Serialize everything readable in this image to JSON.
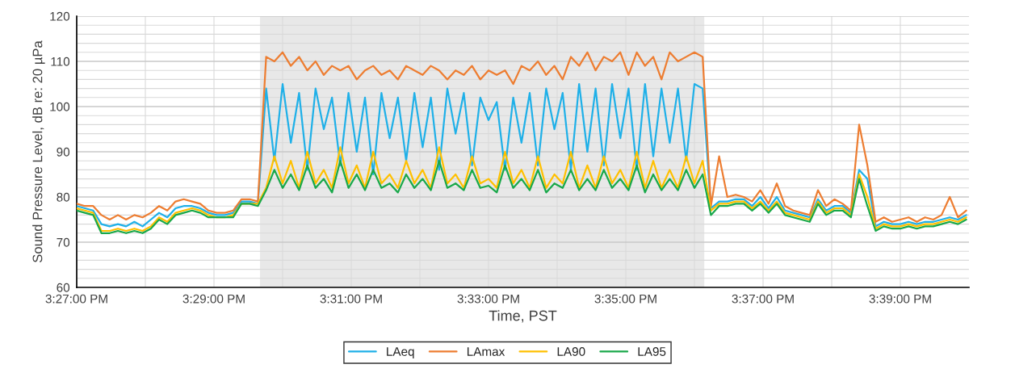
{
  "chart_data": {
    "type": "line",
    "xlabel": "Time, PST",
    "ylabel": "Sound Pressure Level, dB re: 20 µPa",
    "x": [
      15.45,
      15.452,
      15.454,
      15.456,
      15.458,
      15.46,
      15.462,
      15.464,
      15.466,
      15.468,
      15.47,
      15.472,
      15.474,
      15.476,
      15.478,
      15.48,
      15.482,
      15.484,
      15.486,
      15.488,
      15.49,
      15.492,
      15.494,
      15.496,
      15.498,
      15.5,
      15.502,
      15.504,
      15.506,
      15.508,
      15.51,
      15.512,
      15.514,
      15.516,
      15.518,
      15.52,
      15.522,
      15.524,
      15.526,
      15.528,
      15.53,
      15.532,
      15.534,
      15.536,
      15.538,
      15.54,
      15.542,
      15.544,
      15.546,
      15.548,
      15.55,
      15.552,
      15.554,
      15.556,
      15.558,
      15.56,
      15.562,
      15.564,
      15.566,
      15.568,
      15.57,
      15.572,
      15.574,
      15.576,
      15.578,
      15.58,
      15.582,
      15.584,
      15.586,
      15.588,
      15.59,
      15.592,
      15.594,
      15.596,
      15.598,
      15.6,
      15.602,
      15.604,
      15.606,
      15.608,
      15.61,
      15.612,
      15.614,
      15.616,
      15.618,
      15.62,
      15.622,
      15.624,
      15.626,
      15.628,
      15.63,
      15.632,
      15.634,
      15.636,
      15.638,
      15.64,
      15.642,
      15.644,
      15.646,
      15.648,
      15.65,
      15.652,
      15.654,
      15.656,
      15.658,
      15.66,
      15.662,
      15.664,
      15.666
    ],
    "series": [
      {
        "name": "LAeq",
        "color": "#1fb0e8",
        "values": [
          78,
          77.5,
          77,
          74,
          73.5,
          74,
          73.5,
          74.5,
          73.5,
          75,
          76.5,
          75.5,
          77.5,
          78,
          78,
          77.5,
          76.5,
          76,
          76,
          76.5,
          79,
          79,
          78.5,
          104,
          88,
          105,
          92,
          103,
          86,
          104,
          95,
          102,
          87,
          103,
          90,
          102,
          85,
          103,
          93,
          102,
          88,
          103,
          91,
          102,
          86,
          104,
          94,
          103,
          87,
          102,
          97,
          101,
          86,
          102,
          92,
          103,
          87,
          104,
          95,
          103,
          86,
          105,
          90,
          104,
          87,
          105,
          93,
          104,
          86,
          105,
          89,
          104,
          92,
          104,
          88,
          105,
          104,
          77.5,
          79,
          79,
          79.5,
          79.5,
          78,
          80,
          77.5,
          80,
          77,
          76.5,
          76,
          75.5,
          79.5,
          77,
          78,
          78,
          76.5,
          86,
          84,
          73.5,
          74.5,
          74,
          74,
          74.5,
          74,
          74.5,
          74.5,
          75,
          75.5,
          75,
          76
        ]
      },
      {
        "name": "LAmax",
        "color": "#ed7d31",
        "values": [
          78.5,
          78,
          78,
          76,
          75,
          76,
          75,
          76,
          75.5,
          76.5,
          78,
          77,
          79,
          79.5,
          79,
          78.5,
          77,
          76.5,
          76.5,
          77,
          79.5,
          79.5,
          79,
          111,
          110,
          112,
          109,
          111,
          108,
          110,
          107,
          109,
          108,
          109,
          106,
          108,
          109,
          107,
          108,
          106,
          109,
          108,
          107,
          109,
          108,
          106,
          108,
          107,
          109,
          106,
          108,
          107,
          108,
          105,
          109,
          108,
          110,
          107,
          109,
          106,
          111,
          109,
          112,
          108,
          111,
          110,
          112,
          107,
          112,
          109,
          111,
          106,
          112,
          110,
          111,
          112,
          111,
          78,
          89,
          80,
          80.5,
          80,
          79,
          81.5,
          78.5,
          83,
          78,
          77,
          76.5,
          76,
          81.5,
          78,
          79.5,
          78.5,
          77,
          96,
          87,
          74.5,
          75.5,
          74.5,
          75,
          75.5,
          74.5,
          75.5,
          75,
          76,
          80,
          75.5,
          77
        ]
      },
      {
        "name": "LA90",
        "color": "#ffc000",
        "values": [
          77.5,
          77,
          76.5,
          72.5,
          72.5,
          73,
          72.5,
          73,
          72.5,
          73.5,
          75.5,
          74.5,
          76.5,
          77,
          77.5,
          77,
          76,
          75.5,
          75.5,
          76,
          78.5,
          78.5,
          78.5,
          82,
          89,
          83,
          88,
          82,
          90,
          83,
          86,
          82,
          91,
          83,
          87,
          82,
          90,
          83,
          85,
          82,
          88,
          83,
          86,
          82,
          91,
          83,
          85,
          82,
          89,
          83,
          84,
          82,
          90,
          83,
          86,
          82,
          89,
          82,
          85,
          83,
          90,
          82,
          87,
          82,
          89,
          83,
          86,
          82,
          90,
          82,
          88,
          82,
          86,
          82,
          89,
          83,
          88,
          77,
          78.5,
          78.5,
          79,
          79,
          77.5,
          79,
          77,
          79,
          76.5,
          76,
          75.5,
          75,
          79,
          76.5,
          77.5,
          77.5,
          76,
          85,
          80,
          73,
          74,
          73.5,
          73.5,
          74,
          73.5,
          74,
          74,
          74.5,
          75,
          74.5,
          75.5
        ]
      },
      {
        "name": "LA95",
        "color": "#19a84a",
        "values": [
          77,
          76.5,
          76,
          72,
          72,
          72.5,
          72,
          72.5,
          72,
          73,
          75,
          74,
          76,
          76.5,
          77,
          76.5,
          75.5,
          75.5,
          75.5,
          75.5,
          78.5,
          78.5,
          78,
          81.5,
          86,
          82,
          85,
          81.5,
          87,
          82,
          84,
          81,
          88,
          82,
          85,
          81.5,
          86,
          82,
          83,
          81,
          85,
          82,
          84,
          81.5,
          88,
          82,
          83,
          81.5,
          86,
          82,
          82.5,
          81,
          87,
          82,
          84,
          81.5,
          86,
          81,
          83,
          82,
          86,
          81.5,
          84,
          81.5,
          86,
          82,
          84,
          81.5,
          87,
          81,
          85,
          81.5,
          84,
          81.5,
          86,
          82,
          85,
          76,
          78,
          78,
          78.5,
          78.5,
          77,
          78.5,
          76.5,
          78.5,
          76,
          75.5,
          75,
          74.5,
          78.5,
          76,
          77,
          77,
          75.5,
          84,
          78,
          72.5,
          73.5,
          73,
          73,
          73.5,
          73,
          73.5,
          73.5,
          74,
          74.5,
          74,
          75
        ]
      }
    ],
    "xlim": [
      15.45,
      15.666667
    ],
    "xticks": [
      {
        "value": 15.45,
        "label": "3:27:00 PM"
      },
      {
        "value": 15.466667,
        "label": null
      },
      {
        "value": 15.483333,
        "label": "3:29:00 PM"
      },
      {
        "value": 15.5,
        "label": null
      },
      {
        "value": 15.516667,
        "label": "3:31:00 PM"
      },
      {
        "value": 15.533333,
        "label": null
      },
      {
        "value": 15.55,
        "label": "3:33:00 PM"
      },
      {
        "value": 15.566667,
        "label": null
      },
      {
        "value": 15.583333,
        "label": "3:35:00 PM"
      },
      {
        "value": 15.6,
        "label": null
      },
      {
        "value": 15.616667,
        "label": "3:37:00 PM"
      },
      {
        "value": 15.633333,
        "label": null
      },
      {
        "value": 15.65,
        "label": "3:39:00 PM"
      }
    ],
    "ylim": [
      60,
      120
    ],
    "yticks": [
      60,
      {
        "value": 62,
        "label": null
      },
      {
        "value": 64,
        "label": null
      },
      {
        "value": 66,
        "label": null
      },
      {
        "value": 68,
        "label": null
      },
      70,
      {
        "value": 72,
        "label": null
      },
      {
        "value": 74,
        "label": null
      },
      {
        "value": 76,
        "label": null
      },
      {
        "value": 78,
        "label": null
      },
      80,
      {
        "value": 82,
        "label": null
      },
      {
        "value": 84,
        "label": null
      },
      {
        "value": 86,
        "label": null
      },
      {
        "value": 88,
        "label": null
      },
      90,
      {
        "value": 92,
        "label": null
      },
      {
        "value": 94,
        "label": null
      },
      {
        "value": 96,
        "label": null
      },
      {
        "value": 98,
        "label": null
      },
      100,
      {
        "value": 102,
        "label": null
      },
      {
        "value": 104,
        "label": null
      },
      {
        "value": 106,
        "label": null
      },
      {
        "value": 108,
        "label": null
      },
      110,
      {
        "value": 112,
        "label": null
      },
      {
        "value": 114,
        "label": null
      },
      {
        "value": 116,
        "label": null
      },
      {
        "value": 118,
        "label": null
      },
      120
    ],
    "bands": [
      {
        "axis": "x",
        "from": 15.4945,
        "to": 15.6024,
        "color": "#e8e8e8"
      }
    ],
    "grid": true,
    "legend": "bottom",
    "line_style": "solid",
    "marker": "none"
  }
}
